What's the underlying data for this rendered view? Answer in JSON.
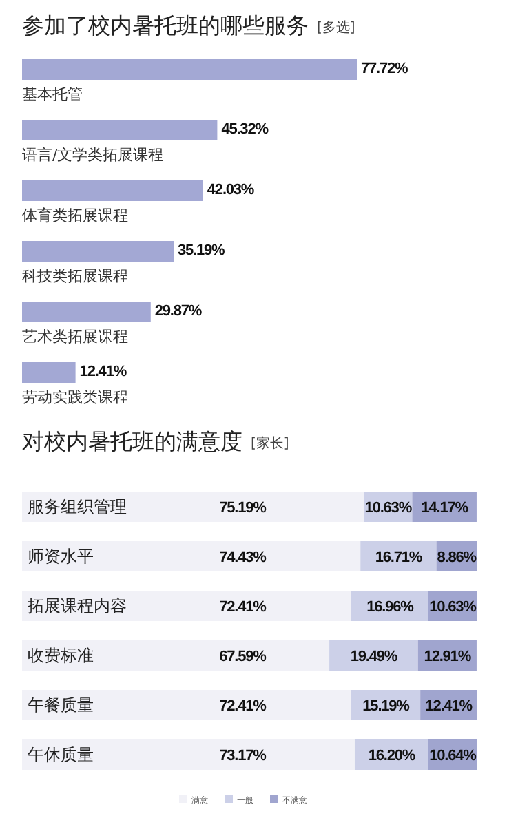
{
  "chart_data": [
    {
      "type": "bar",
      "orientation": "horizontal",
      "title": "参加了校内暑托班的哪些服务",
      "subtitle": "[多选]",
      "categories": [
        "基本托管",
        "语言/文学类拓展课程",
        "体育类拓展课程",
        "科技类拓展课程",
        "艺术类拓展课程",
        "劳动实践类课程"
      ],
      "values": [
        77.72,
        45.32,
        42.03,
        35.19,
        29.87,
        12.41
      ],
      "value_labels": [
        "77.72%",
        "45.32%",
        "42.03%",
        "35.19%",
        "29.87%",
        "12.41%"
      ],
      "color": "#a3a8d4"
    },
    {
      "type": "bar",
      "orientation": "horizontal",
      "stacked": true,
      "title": "对校内暑托班的满意度",
      "subtitle": "[家长]",
      "categories": [
        "服务组织管理",
        "师资水平",
        "拓展课程内容",
        "收费标准",
        "午餐质量",
        "午休质量"
      ],
      "series": [
        {
          "name": "满意",
          "color": "#f1f1f7",
          "values": [
            75.19,
            74.43,
            72.41,
            67.59,
            72.41,
            73.17
          ],
          "value_labels": [
            "75.19%",
            "74.43%",
            "72.41%",
            "67.59%",
            "72.41%",
            "73.17%"
          ]
        },
        {
          "name": "一般",
          "color": "#ccd0e8",
          "values": [
            10.63,
            16.71,
            16.96,
            19.49,
            15.19,
            16.2
          ],
          "value_labels": [
            "10.63%",
            "16.71%",
            "16.96%",
            "19.49%",
            "15.19%",
            "16.20%"
          ]
        },
        {
          "name": "不满意",
          "color": "#a0a5cf",
          "values": [
            14.17,
            8.86,
            10.63,
            12.91,
            12.41,
            10.64
          ],
          "value_labels": [
            "14.17%",
            "8.86%",
            "10.63%",
            "12.91%",
            "12.41%",
            "10.64%"
          ]
        }
      ],
      "legend": "bottom"
    }
  ]
}
